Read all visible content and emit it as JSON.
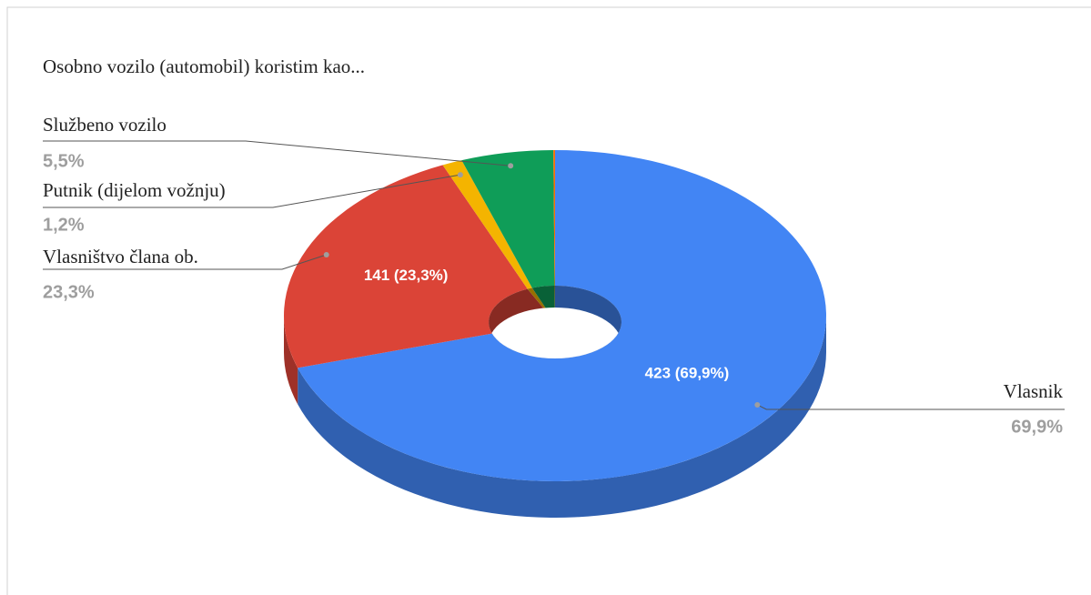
{
  "chart_data": {
    "type": "pie",
    "donut": true,
    "three_d": true,
    "title": "Osobno vozilo (automobil) koristim kao...",
    "categories": [
      "Vlasnik",
      "Vlasništvo člana ob.",
      "Putnik (dijelom vožnju)",
      "Službeno vozilo",
      null
    ],
    "values": [
      69.9,
      23.3,
      1.2,
      5.5,
      0.1
    ],
    "value_labels": [
      "69,9%",
      "23,3%",
      "1,2%",
      "5,5%",
      null
    ],
    "slice_labels": [
      "423 (69,9%)",
      "141 (23,3%)",
      null,
      null,
      null
    ],
    "colors": [
      "#4285f4",
      "#db4437",
      "#f4b400",
      "#0f9d58",
      "#ff6d01"
    ]
  }
}
